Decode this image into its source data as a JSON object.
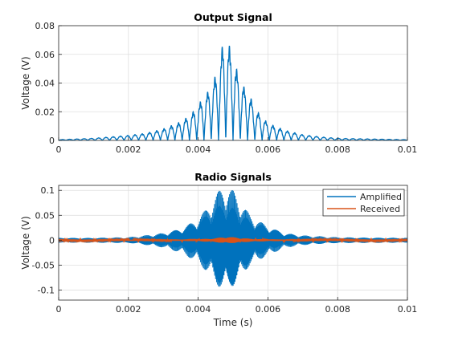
{
  "chart_data": [
    {
      "type": "line",
      "title": "Output Signal",
      "xlabel": "",
      "ylabel": "Voltage (V)",
      "xlim": [
        0,
        0.01
      ],
      "ylim": [
        0,
        0.08
      ],
      "xticks": [
        "0",
        "0.002",
        "0.004",
        "0.006",
        "0.008",
        "0.01"
      ],
      "yticks": [
        "0",
        "0.02",
        "0.04",
        "0.06",
        "0.08"
      ],
      "grid": true,
      "series": [
        {
          "color": "#0072BD",
          "points": [
            [
              0.0,
              0.0005
            ],
            [
              0.0005,
              0.001
            ],
            [
              0.001,
              0.0015
            ],
            [
              0.0015,
              0.0025
            ],
            [
              0.002,
              0.0035
            ],
            [
              0.0025,
              0.005
            ],
            [
              0.003,
              0.008
            ],
            [
              0.0035,
              0.013
            ],
            [
              0.0038,
              0.018
            ],
            [
              0.004,
              0.025
            ],
            [
              0.0042,
              0.031
            ],
            [
              0.0044,
              0.039
            ],
            [
              0.0046,
              0.052
            ],
            [
              0.0047,
              0.067
            ],
            [
              0.0049,
              0.066
            ],
            [
              0.0051,
              0.05
            ],
            [
              0.0053,
              0.038
            ],
            [
              0.0055,
              0.03
            ],
            [
              0.0057,
              0.02
            ],
            [
              0.006,
              0.012
            ],
            [
              0.0065,
              0.007
            ],
            [
              0.007,
              0.004
            ],
            [
              0.0075,
              0.0025
            ],
            [
              0.008,
              0.0015
            ],
            [
              0.009,
              0.001
            ],
            [
              0.01,
              0.0005
            ]
          ]
        }
      ]
    },
    {
      "type": "line",
      "title": "Radio Signals",
      "xlabel": "Time (s)",
      "ylabel": "Voltage (V)",
      "xlim": [
        0,
        0.01
      ],
      "ylim": [
        -0.12,
        0.11
      ],
      "xticks": [
        "0",
        "0.002",
        "0.004",
        "0.006",
        "0.008",
        "0.01"
      ],
      "yticks": [
        "0.1",
        "0.05",
        "0",
        "-0.05",
        "-0.1"
      ],
      "grid": true,
      "legend": "top-right",
      "series": [
        {
          "name": "Amplified",
          "color": "#0072BD",
          "envelope": [
            [
              0.0,
              0.005
            ],
            [
              0.001,
              0.005
            ],
            [
              0.002,
              0.006
            ],
            [
              0.0025,
              0.01
            ],
            [
              0.003,
              0.015
            ],
            [
              0.0035,
              0.025
            ],
            [
              0.004,
              0.045
            ],
            [
              0.0043,
              0.07
            ],
            [
              0.0046,
              0.1
            ],
            [
              0.0048,
              0.11
            ],
            [
              0.005,
              0.1
            ],
            [
              0.0052,
              0.08
            ],
            [
              0.0055,
              0.05
            ],
            [
              0.006,
              0.03
            ],
            [
              0.0065,
              0.015
            ],
            [
              0.007,
              0.01
            ],
            [
              0.008,
              0.006
            ],
            [
              0.01,
              0.005
            ]
          ]
        },
        {
          "name": "Received",
          "color": "#D95319",
          "envelope": [
            [
              0.0,
              0.001
            ],
            [
              0.003,
              0.001
            ],
            [
              0.004,
              0.002
            ],
            [
              0.0045,
              0.004
            ],
            [
              0.0048,
              0.007
            ],
            [
              0.005,
              0.006
            ],
            [
              0.0055,
              0.003
            ],
            [
              0.006,
              0.002
            ],
            [
              0.007,
              0.001
            ],
            [
              0.01,
              0.001
            ]
          ]
        }
      ]
    }
  ]
}
